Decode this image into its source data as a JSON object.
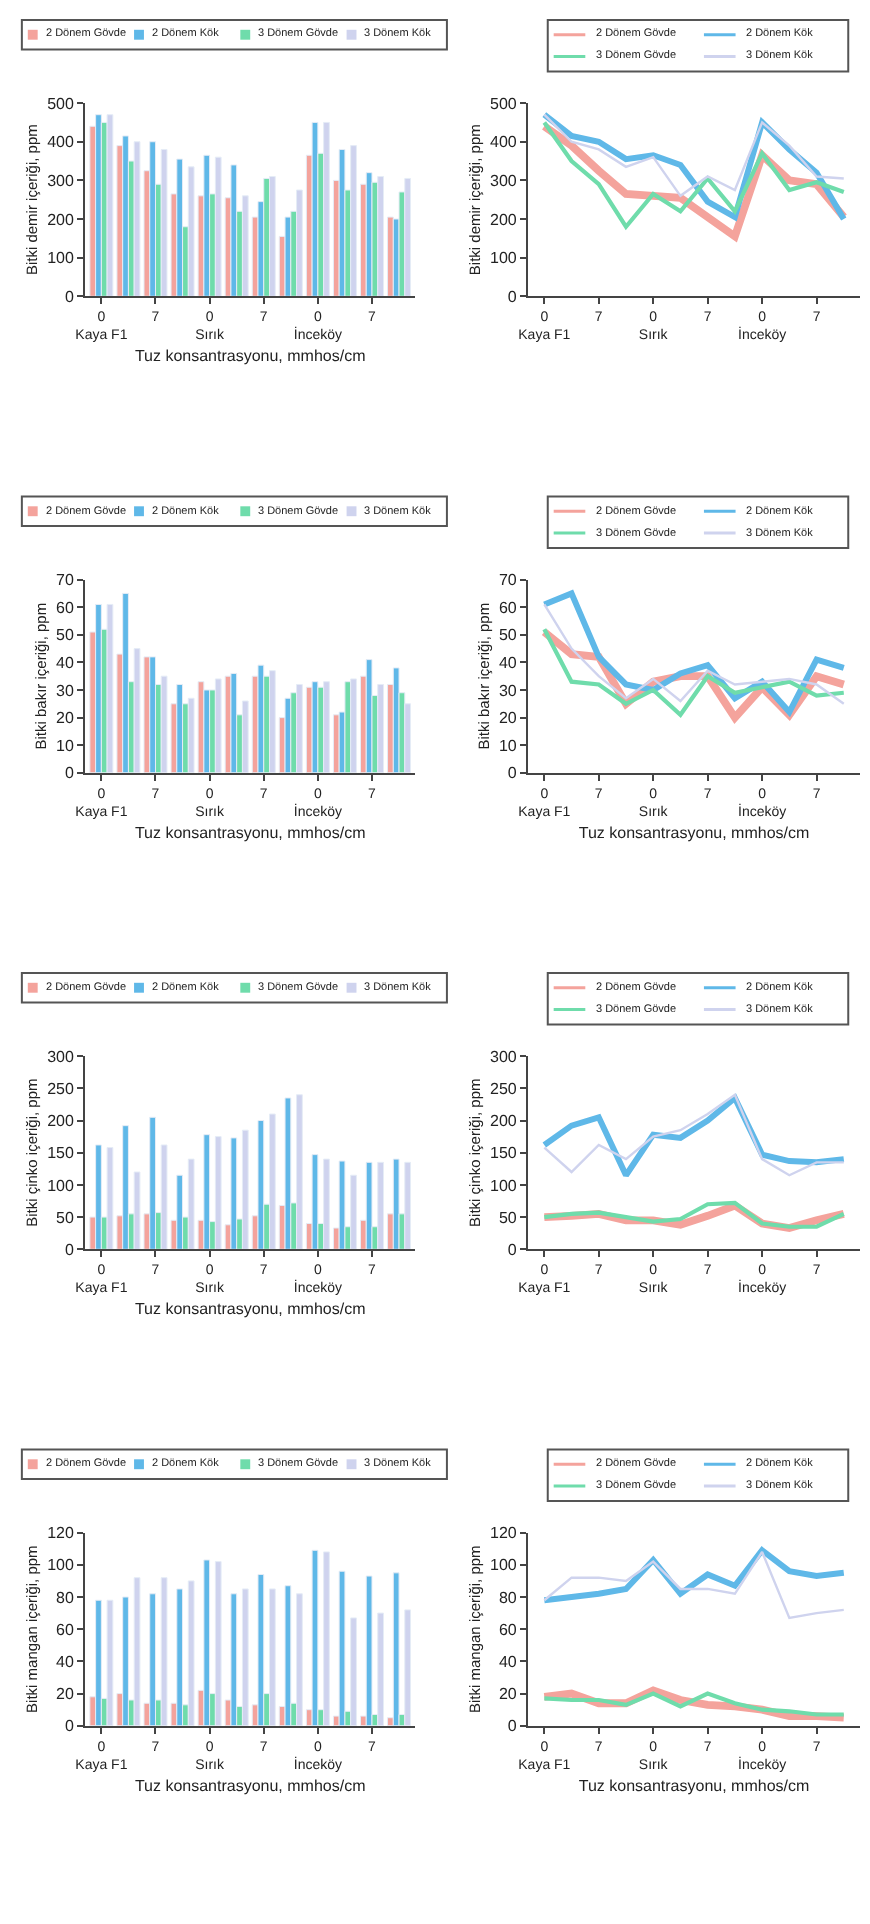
{
  "chart_data": [
    {
      "type": "bar",
      "ylabel": "Bitki demir içeriği, ppm",
      "xlabel": "Tuz konsantrasyonu, mmhos/cm",
      "legend": "top",
      "ylim": [
        0,
        500
      ],
      "yticks": [
        0,
        100,
        200,
        300,
        400,
        500
      ],
      "categories": [
        "0\nKaya F1",
        null,
        "7",
        null,
        "0\nSırık",
        null,
        "7",
        null,
        "0\nİnceköy",
        null,
        "7",
        null
      ],
      "series": [
        {
          "name": "2 Dönem Gövde",
          "color": "#f4a39c",
          "values": [
            440,
            390,
            325,
            265,
            260,
            255,
            205,
            155,
            365,
            300,
            290,
            205
          ]
        },
        {
          "name": "2 Dönem Kök",
          "color": "#5fb8e8",
          "values": [
            470,
            415,
            400,
            355,
            365,
            340,
            245,
            205,
            450,
            380,
            320,
            200
          ]
        },
        {
          "name": "3 Dönem Gövde",
          "color": "#6fdcab",
          "values": [
            450,
            350,
            290,
            180,
            265,
            220,
            305,
            220,
            370,
            275,
            295,
            270
          ]
        },
        {
          "name": "3 Dönem Kök",
          "color": "#cfd3ee",
          "values": [
            470,
            400,
            380,
            335,
            360,
            260,
            310,
            275,
            450,
            390,
            310,
            305
          ]
        }
      ]
    },
    {
      "type": "line",
      "ylabel": "Bitki demir içeriği, ppm",
      "legend": "top",
      "ylim": [
        0,
        500
      ],
      "yticks": [
        0,
        100,
        200,
        300,
        400,
        500
      ],
      "categories": [
        "0\nKaya F1",
        null,
        "7",
        null,
        "0\nSırık",
        null,
        "7",
        null,
        "0\nİnceköy",
        null,
        "7",
        null
      ],
      "series": [
        {
          "name": "2 Dönem Gövde",
          "color": "#f4a39c",
          "values": [
            440,
            390,
            325,
            265,
            260,
            255,
            205,
            155,
            365,
            300,
            290,
            205
          ]
        },
        {
          "name": "2 Dönem Kök",
          "color": "#5fb8e8",
          "values": [
            470,
            415,
            400,
            355,
            365,
            340,
            245,
            205,
            450,
            380,
            320,
            200
          ]
        },
        {
          "name": "3 Dönem Gövde",
          "color": "#6fdcab",
          "values": [
            450,
            350,
            290,
            180,
            265,
            220,
            305,
            220,
            370,
            275,
            295,
            270
          ]
        },
        {
          "name": "3 Dönem Kök",
          "color": "#cfd3ee",
          "values": [
            470,
            400,
            380,
            335,
            360,
            260,
            310,
            275,
            450,
            390,
            310,
            305
          ]
        }
      ]
    },
    {
      "type": "bar",
      "ylabel": "Bitki bakır içeriği, ppm",
      "xlabel": "Tuz konsantrasyonu, mmhos/cm",
      "legend": "top",
      "ylim": [
        0,
        70
      ],
      "yticks": [
        0,
        10,
        20,
        30,
        40,
        50,
        60,
        70
      ],
      "categories": [
        "0\nKaya F1",
        null,
        "7",
        null,
        "0\nSırık",
        null,
        "7",
        null,
        "0\nİnceköy",
        null,
        "7",
        null
      ],
      "series": [
        {
          "name": "2 Dönem Gövde",
          "color": "#f4a39c",
          "values": [
            51,
            43,
            42,
            25,
            33,
            35,
            35,
            20,
            31,
            21,
            35,
            32
          ]
        },
        {
          "name": "2 Dönem Kök",
          "color": "#5fb8e8",
          "values": [
            61,
            65,
            42,
            32,
            30,
            36,
            39,
            27,
            33,
            22,
            41,
            38
          ]
        },
        {
          "name": "3 Dönem Gövde",
          "color": "#6fdcab",
          "values": [
            52,
            33,
            32,
            25,
            30,
            21,
            35,
            29,
            31,
            33,
            28,
            29
          ]
        },
        {
          "name": "3 Dönem Kök",
          "color": "#cfd3ee",
          "values": [
            61,
            45,
            35,
            27,
            34,
            26,
            37,
            32,
            33,
            34,
            32,
            25
          ]
        }
      ]
    },
    {
      "type": "line",
      "ylabel": "Bitki bakır içeriği, ppm",
      "xlabel": "Tuz konsantrasyonu, mmhos/cm",
      "legend": "top",
      "ylim": [
        0,
        70
      ],
      "yticks": [
        0,
        10,
        20,
        30,
        40,
        50,
        60,
        70
      ],
      "categories": [
        "0\nKaya F1",
        null,
        "7",
        null,
        "0\nSırık",
        null,
        "7",
        null,
        "0\nİnceköy",
        null,
        "7",
        null
      ],
      "series": [
        {
          "name": "2 Dönem Gövde",
          "color": "#f4a39c",
          "values": [
            51,
            43,
            42,
            25,
            33,
            35,
            35,
            20,
            31,
            21,
            35,
            32
          ]
        },
        {
          "name": "2 Dönem Kök",
          "color": "#5fb8e8",
          "values": [
            61,
            65,
            42,
            32,
            30,
            36,
            39,
            27,
            33,
            22,
            41,
            38
          ]
        },
        {
          "name": "3 Dönem Gövde",
          "color": "#6fdcab",
          "values": [
            52,
            33,
            32,
            25,
            30,
            21,
            35,
            29,
            31,
            33,
            28,
            29
          ]
        },
        {
          "name": "3 Dönem Kök",
          "color": "#cfd3ee",
          "values": [
            61,
            45,
            35,
            27,
            34,
            26,
            37,
            32,
            33,
            34,
            32,
            25
          ]
        }
      ]
    },
    {
      "type": "bar",
      "ylabel": "Bitki çinko içeriği, ppm",
      "xlabel": "Tuz konsantrasyonu, mmhos/cm",
      "legend": "top",
      "ylim": [
        0,
        300
      ],
      "yticks": [
        0,
        50,
        100,
        150,
        200,
        250,
        300
      ],
      "categories": [
        "0\nKaya F1",
        null,
        "7",
        null,
        "0\nSırık",
        null,
        "7",
        null,
        "0\nİnceköy",
        null,
        "7",
        null
      ],
      "series": [
        {
          "name": "2 Dönem Gövde",
          "color": "#f4a39c",
          "values": [
            50,
            52,
            55,
            45,
            45,
            38,
            52,
            68,
            40,
            33,
            45,
            55
          ]
        },
        {
          "name": "2 Dönem Kök",
          "color": "#5fb8e8",
          "values": [
            162,
            192,
            205,
            115,
            178,
            173,
            200,
            235,
            147,
            137,
            135,
            140
          ]
        },
        {
          "name": "3 Dönem Gövde",
          "color": "#6fdcab",
          "values": [
            50,
            55,
            57,
            50,
            43,
            47,
            70,
            72,
            40,
            35,
            35,
            55
          ]
        },
        {
          "name": "3 Dönem Kök",
          "color": "#cfd3ee",
          "values": [
            158,
            120,
            162,
            140,
            175,
            185,
            210,
            240,
            140,
            115,
            135,
            135
          ]
        }
      ]
    },
    {
      "type": "line",
      "ylabel": "Bitki çinko içeriği, ppm",
      "legend": "top",
      "ylim": [
        0,
        300
      ],
      "yticks": [
        0,
        50,
        100,
        150,
        200,
        250,
        300
      ],
      "categories": [
        "0\nKaya F1",
        null,
        "7",
        null,
        "0\nSırık",
        null,
        "7",
        null,
        "0\nİnceköy",
        null,
        "7",
        null
      ],
      "series": [
        {
          "name": "2 Dönem Gövde",
          "color": "#f4a39c",
          "values": [
            50,
            52,
            55,
            45,
            45,
            38,
            52,
            68,
            40,
            33,
            45,
            55
          ]
        },
        {
          "name": "2 Dönem Kök",
          "color": "#5fb8e8",
          "values": [
            162,
            192,
            205,
            115,
            178,
            173,
            200,
            235,
            147,
            137,
            135,
            140
          ]
        },
        {
          "name": "3 Dönem Gövde",
          "color": "#6fdcab",
          "values": [
            50,
            55,
            57,
            50,
            43,
            47,
            70,
            72,
            40,
            35,
            35,
            55
          ]
        },
        {
          "name": "3 Dönem Kök",
          "color": "#cfd3ee",
          "values": [
            158,
            120,
            162,
            140,
            175,
            185,
            210,
            240,
            140,
            115,
            135,
            135
          ]
        }
      ]
    },
    {
      "type": "bar",
      "ylabel": "Bitki mangan içeriği, ppm",
      "xlabel": "Tuz konsantrasyonu, mmhos/cm",
      "legend": "top",
      "ylim": [
        0,
        120
      ],
      "yticks": [
        0,
        20,
        40,
        60,
        80,
        100,
        120
      ],
      "categories": [
        "0\nKaya F1",
        null,
        "7",
        null,
        "0\nSırık",
        null,
        "7",
        null,
        "0\nİnceköy",
        null,
        "7",
        null
      ],
      "series": [
        {
          "name": "2 Dönem Gövde",
          "color": "#f4a39c",
          "values": [
            18,
            20,
            14,
            14,
            22,
            16,
            13,
            12,
            10,
            6,
            6,
            5
          ]
        },
        {
          "name": "2 Dönem Kök",
          "color": "#5fb8e8",
          "values": [
            78,
            80,
            82,
            85,
            103,
            82,
            94,
            87,
            109,
            96,
            93,
            95
          ]
        },
        {
          "name": "3 Dönem Gövde",
          "color": "#6fdcab",
          "values": [
            17,
            16,
            16,
            13,
            20,
            12,
            20,
            14,
            10,
            9,
            7,
            7
          ]
        },
        {
          "name": "3 Dönem Kök",
          "color": "#cfd3ee",
          "values": [
            78,
            92,
            92,
            90,
            102,
            85,
            85,
            82,
            108,
            67,
            70,
            72
          ]
        }
      ]
    },
    {
      "type": "line",
      "ylabel": "Bitki mangan içeriği, ppm",
      "xlabel": "Tuz konsantrasyonu, mmhos/cm",
      "legend": "top",
      "ylim": [
        0,
        120
      ],
      "yticks": [
        0,
        20,
        40,
        60,
        80,
        100,
        120
      ],
      "categories": [
        "0\nKaya F1",
        null,
        "7",
        null,
        "0\nSırık",
        null,
        "7",
        null,
        "0\nİnceköy",
        null,
        "7",
        null
      ],
      "series": [
        {
          "name": "2 Dönem Gövde",
          "color": "#f4a39c",
          "values": [
            18,
            20,
            14,
            14,
            22,
            16,
            13,
            12,
            10,
            6,
            6,
            5
          ]
        },
        {
          "name": "2 Dönem Kök",
          "color": "#5fb8e8",
          "values": [
            78,
            80,
            82,
            85,
            103,
            82,
            94,
            87,
            109,
            96,
            93,
            95
          ]
        },
        {
          "name": "3 Dönem Gövde",
          "color": "#6fdcab",
          "values": [
            17,
            16,
            16,
            13,
            20,
            12,
            20,
            14,
            10,
            9,
            7,
            7
          ]
        },
        {
          "name": "3 Dönem Kök",
          "color": "#cfd3ee",
          "values": [
            78,
            92,
            92,
            90,
            102,
            85,
            85,
            82,
            108,
            67,
            70,
            72
          ]
        }
      ]
    }
  ]
}
